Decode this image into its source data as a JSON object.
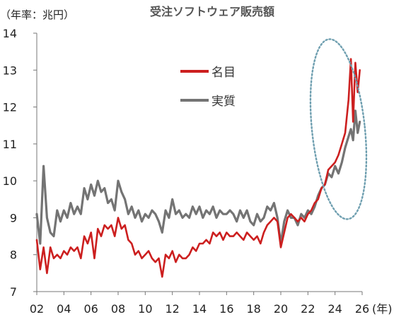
{
  "chart_data": {
    "type": "line",
    "title": "受注ソフトウェア販売額",
    "unit_label": "（年率：兆円）",
    "x_unit_label": "(年)",
    "x_tick_labels": [
      "02",
      "04",
      "06",
      "08",
      "10",
      "12",
      "14",
      "16",
      "18",
      "20",
      "22",
      "24",
      "26"
    ],
    "y_tick_labels": [
      "7",
      "8",
      "9",
      "10",
      "11",
      "12",
      "13",
      "14"
    ],
    "xlim": [
      2002,
      2026
    ],
    "ylim": [
      7,
      14
    ],
    "grid": false,
    "legend_position": "top-center",
    "series": [
      {
        "name": "名目",
        "color": "#cc1f1f",
        "x": [
          2002.0,
          2002.25,
          2002.5,
          2002.75,
          2003.0,
          2003.25,
          2003.5,
          2003.75,
          2004.0,
          2004.25,
          2004.5,
          2004.75,
          2005.0,
          2005.25,
          2005.5,
          2005.75,
          2006.0,
          2006.25,
          2006.5,
          2006.75,
          2007.0,
          2007.25,
          2007.5,
          2007.75,
          2008.0,
          2008.25,
          2008.5,
          2008.75,
          2009.0,
          2009.25,
          2009.5,
          2009.75,
          2010.0,
          2010.25,
          2010.5,
          2010.75,
          2011.0,
          2011.25,
          2011.5,
          2011.75,
          2012.0,
          2012.25,
          2012.5,
          2012.75,
          2013.0,
          2013.25,
          2013.5,
          2013.75,
          2014.0,
          2014.25,
          2014.5,
          2014.75,
          2015.0,
          2015.25,
          2015.5,
          2015.75,
          2016.0,
          2016.25,
          2016.5,
          2016.75,
          2017.0,
          2017.25,
          2017.5,
          2017.75,
          2018.0,
          2018.25,
          2018.5,
          2018.75,
          2019.0,
          2019.25,
          2019.5,
          2019.75,
          2020.0,
          2020.25,
          2020.5,
          2020.75,
          2021.0,
          2021.25,
          2021.5,
          2021.75,
          2022.0,
          2022.25,
          2022.5,
          2022.75,
          2023.0,
          2023.25,
          2023.5,
          2023.75,
          2024.0,
          2024.25,
          2024.5,
          2024.75,
          2025.0,
          2025.17,
          2025.33,
          2025.5,
          2025.67,
          2025.83
        ],
        "values": [
          8.4,
          7.6,
          8.2,
          7.5,
          8.2,
          7.9,
          8.0,
          7.9,
          8.1,
          8.0,
          8.2,
          8.1,
          8.2,
          7.9,
          8.5,
          8.3,
          8.6,
          7.9,
          8.7,
          8.5,
          8.8,
          8.7,
          8.8,
          8.5,
          9.0,
          8.7,
          8.8,
          8.4,
          8.3,
          8.0,
          8.1,
          7.9,
          8.0,
          8.1,
          7.9,
          7.8,
          7.9,
          7.4,
          8.0,
          7.9,
          8.1,
          7.8,
          8.0,
          7.9,
          7.9,
          8.0,
          8.2,
          8.1,
          8.3,
          8.3,
          8.4,
          8.3,
          8.6,
          8.5,
          8.6,
          8.4,
          8.6,
          8.5,
          8.5,
          8.6,
          8.5,
          8.4,
          8.6,
          8.5,
          8.4,
          8.5,
          8.3,
          8.6,
          8.8,
          8.9,
          9.0,
          8.9,
          8.2,
          8.6,
          9.0,
          9.1,
          9.0,
          8.9,
          9.0,
          8.9,
          9.1,
          9.2,
          9.4,
          9.5,
          9.8,
          9.9,
          10.3,
          10.4,
          10.5,
          10.7,
          11.0,
          11.3,
          12.2,
          13.3,
          11.6,
          13.2,
          12.4,
          13.0
        ]
      },
      {
        "name": "実質",
        "color": "#747474",
        "x": [
          2002.0,
          2002.25,
          2002.5,
          2002.75,
          2003.0,
          2003.25,
          2003.5,
          2003.75,
          2004.0,
          2004.25,
          2004.5,
          2004.75,
          2005.0,
          2005.25,
          2005.5,
          2005.75,
          2006.0,
          2006.25,
          2006.5,
          2006.75,
          2007.0,
          2007.25,
          2007.5,
          2007.75,
          2008.0,
          2008.25,
          2008.5,
          2008.75,
          2009.0,
          2009.25,
          2009.5,
          2009.75,
          2010.0,
          2010.25,
          2010.5,
          2010.75,
          2011.0,
          2011.25,
          2011.5,
          2011.75,
          2012.0,
          2012.25,
          2012.5,
          2012.75,
          2013.0,
          2013.25,
          2013.5,
          2013.75,
          2014.0,
          2014.25,
          2014.5,
          2014.75,
          2015.0,
          2015.25,
          2015.5,
          2015.75,
          2016.0,
          2016.25,
          2016.5,
          2016.75,
          2017.0,
          2017.25,
          2017.5,
          2017.75,
          2018.0,
          2018.25,
          2018.5,
          2018.75,
          2019.0,
          2019.25,
          2019.5,
          2019.75,
          2020.0,
          2020.25,
          2020.5,
          2020.75,
          2021.0,
          2021.25,
          2021.5,
          2021.75,
          2022.0,
          2022.25,
          2022.5,
          2022.75,
          2023.0,
          2023.25,
          2023.5,
          2023.75,
          2024.0,
          2024.25,
          2024.5,
          2024.75,
          2025.0,
          2025.17,
          2025.33,
          2025.5,
          2025.67,
          2025.83
        ],
        "values": [
          9.1,
          8.3,
          10.4,
          9.0,
          8.6,
          8.5,
          9.2,
          8.9,
          9.2,
          9.0,
          9.4,
          9.1,
          9.3,
          9.1,
          9.8,
          9.5,
          9.9,
          9.6,
          10.0,
          9.7,
          9.8,
          9.4,
          9.5,
          9.2,
          10.0,
          9.7,
          9.5,
          9.1,
          9.3,
          9.0,
          9.2,
          8.9,
          9.1,
          9.0,
          9.2,
          9.1,
          8.9,
          8.6,
          9.2,
          9.0,
          9.5,
          9.1,
          9.2,
          9.0,
          9.1,
          9.0,
          9.3,
          9.1,
          9.3,
          9.0,
          9.2,
          9.1,
          9.3,
          9.0,
          9.2,
          9.1,
          9.1,
          9.2,
          9.1,
          8.9,
          9.2,
          9.0,
          9.2,
          8.9,
          8.8,
          9.1,
          8.9,
          9.0,
          9.3,
          9.2,
          9.4,
          9.0,
          8.3,
          8.9,
          9.2,
          9.0,
          9.0,
          8.8,
          9.1,
          9.0,
          9.2,
          9.1,
          9.3,
          9.6,
          9.8,
          9.9,
          10.2,
          10.1,
          10.4,
          10.2,
          10.5,
          10.9,
          11.2,
          11.4,
          11.1,
          11.9,
          11.3,
          11.6
        ]
      }
    ],
    "annotation": {
      "shape": "dotted-ellipse",
      "color": "#6f9fb0",
      "x_range": [
        2022.3,
        2026.2
      ],
      "y_range": [
        8.95,
        13.85
      ]
    }
  }
}
